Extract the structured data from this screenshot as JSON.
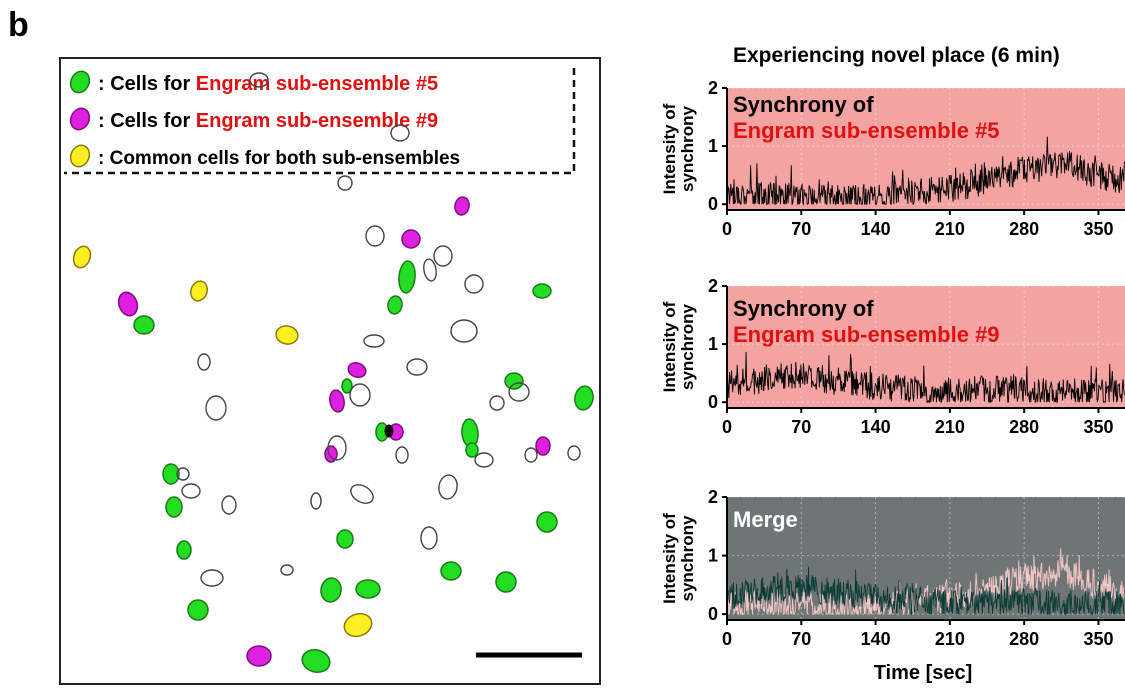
{
  "panel_letter": "b",
  "figure_title": "Experiencing novel place (6 min)",
  "legend": {
    "items": [
      {
        "prefix": ": Cells for ",
        "highlight": "Engram sub-ensemble #5",
        "fill": "#22dd22",
        "stroke": "#1a7a1a"
      },
      {
        "prefix": ": Cells for ",
        "highlight": "Engram sub-ensemble #9",
        "fill": "#e020e0",
        "stroke": "#7a107a"
      },
      {
        "prefix": ": Common cells for both sub-ensembles",
        "highlight": "",
        "fill": "#ffef20",
        "stroke": "#8a7a10"
      }
    ]
  },
  "colors": {
    "highlight_text": "#e01010",
    "panel_red_bg": "#f4a3a3",
    "panel_merge_bg": "#6f7575",
    "trace_black": "#000000",
    "merge_dark_trace": "#0a3b36",
    "merge_pink_trace": "#f3c6c6",
    "scale_bar": "#000000"
  },
  "chart_data": [
    {
      "type": "line",
      "panel_text": [
        "Synchrony of",
        "Engram sub-ensemble #5"
      ],
      "panel_text_colors": [
        "#000000",
        "#e01010"
      ],
      "ylabel": "Intensity of synchrony",
      "xlabel": "",
      "xlim": [
        0,
        375
      ],
      "ylim": [
        -0.1,
        2
      ],
      "xticks": [
        "0",
        "70",
        "140",
        "210",
        "280",
        "350"
      ],
      "yticks": [
        "0",
        "1",
        "2"
      ],
      "background": "#f4a3a3",
      "series": [
        {
          "color": "#000000",
          "profile_x": [
            0,
            60,
            120,
            160,
            200,
            240,
            270,
            300,
            320,
            340,
            360,
            375
          ],
          "profile_y": [
            0.18,
            0.12,
            0.08,
            0.15,
            0.25,
            0.38,
            0.55,
            0.65,
            0.7,
            0.55,
            0.45,
            0.35
          ]
        }
      ]
    },
    {
      "type": "line",
      "panel_text": [
        "Synchrony of",
        "Engram sub-ensemble #9"
      ],
      "panel_text_colors": [
        "#000000",
        "#e01010"
      ],
      "ylabel": "Intensity of synchrony",
      "xlabel": "",
      "xlim": [
        0,
        375
      ],
      "ylim": [
        -0.1,
        2
      ],
      "xticks": [
        "0",
        "70",
        "140",
        "210",
        "280",
        "350"
      ],
      "yticks": [
        "0",
        "1",
        "2"
      ],
      "background": "#f4a3a3",
      "series": [
        {
          "color": "#000000",
          "profile_x": [
            0,
            40,
            70,
            110,
            150,
            200,
            250,
            300,
            340,
            375
          ],
          "profile_y": [
            0.3,
            0.42,
            0.45,
            0.35,
            0.25,
            0.2,
            0.22,
            0.18,
            0.15,
            0.15
          ]
        }
      ]
    },
    {
      "type": "line",
      "panel_text": [
        "Merge"
      ],
      "panel_text_colors": [
        "#ffffff"
      ],
      "ylabel": "Intensity of synchrony",
      "xlabel": "Time [sec]",
      "xlim": [
        0,
        375
      ],
      "ylim": [
        -0.1,
        2
      ],
      "xticks": [
        "0",
        "70",
        "140",
        "210",
        "280",
        "350"
      ],
      "yticks": [
        "0",
        "1",
        "2"
      ],
      "background": "#6f7575",
      "series": [
        {
          "color": "#f3c6c6",
          "profile_x": [
            0,
            60,
            120,
            160,
            200,
            240,
            270,
            300,
            320,
            340,
            360,
            375
          ],
          "profile_y": [
            0.18,
            0.12,
            0.08,
            0.15,
            0.25,
            0.38,
            0.55,
            0.65,
            0.7,
            0.55,
            0.45,
            0.35
          ]
        },
        {
          "color": "#0a3b36",
          "profile_x": [
            0,
            40,
            70,
            110,
            150,
            200,
            250,
            300,
            340,
            375
          ],
          "profile_y": [
            0.3,
            0.42,
            0.45,
            0.35,
            0.25,
            0.2,
            0.22,
            0.18,
            0.15,
            0.15
          ]
        }
      ]
    }
  ],
  "cell_map": {
    "cells": [
      {
        "type": "yellow",
        "x": 82,
        "y": 257,
        "rx": 8,
        "ry": 11,
        "rot": 20
      },
      {
        "type": "yellow",
        "x": 199,
        "y": 291,
        "rx": 8,
        "ry": 10,
        "rot": 20
      },
      {
        "type": "yellow",
        "x": 287,
        "y": 335,
        "rx": 11,
        "ry": 9,
        "rot": 10
      },
      {
        "type": "yellow",
        "x": 358,
        "y": 625,
        "rx": 14,
        "ry": 11,
        "rot": -20
      },
      {
        "type": "magenta",
        "x": 462,
        "y": 206,
        "rx": 7,
        "ry": 9,
        "rot": 10
      },
      {
        "type": "magenta",
        "x": 411,
        "y": 239,
        "rx": 9,
        "ry": 9,
        "rot": 0
      },
      {
        "type": "magenta",
        "x": 128,
        "y": 304,
        "rx": 9,
        "ry": 12,
        "rot": -20
      },
      {
        "type": "magenta",
        "x": 357,
        "y": 370,
        "rx": 9,
        "ry": 7,
        "rot": 20
      },
      {
        "type": "magenta",
        "x": 337,
        "y": 401,
        "rx": 7,
        "ry": 11,
        "rot": -10
      },
      {
        "type": "magenta",
        "x": 396,
        "y": 432,
        "rx": 7,
        "ry": 8,
        "rot": 0
      },
      {
        "type": "magenta",
        "x": 331,
        "y": 454,
        "rx": 6,
        "ry": 8,
        "rot": 0
      },
      {
        "type": "magenta",
        "x": 543,
        "y": 446,
        "rx": 7,
        "ry": 9,
        "rot": 0
      },
      {
        "type": "magenta",
        "x": 259,
        "y": 656,
        "rx": 12,
        "ry": 10,
        "rot": 0
      },
      {
        "type": "green",
        "x": 407,
        "y": 277,
        "rx": 8,
        "ry": 16,
        "rot": 5
      },
      {
        "type": "green",
        "x": 395,
        "y": 305,
        "rx": 7,
        "ry": 9,
        "rot": 10
      },
      {
        "type": "green",
        "x": 542,
        "y": 291,
        "rx": 9,
        "ry": 7,
        "rot": 0
      },
      {
        "type": "green",
        "x": 144,
        "y": 325,
        "rx": 10,
        "ry": 9,
        "rot": 0
      },
      {
        "type": "green",
        "x": 347,
        "y": 386,
        "rx": 5,
        "ry": 7,
        "rot": 0
      },
      {
        "type": "green",
        "x": 514,
        "y": 381,
        "rx": 9,
        "ry": 8,
        "rot": 0
      },
      {
        "type": "green",
        "x": 584,
        "y": 398,
        "rx": 9,
        "ry": 12,
        "rot": 10
      },
      {
        "type": "green",
        "x": 470,
        "y": 433,
        "rx": 8,
        "ry": 14,
        "rot": -5
      },
      {
        "type": "green",
        "x": 472,
        "y": 450,
        "rx": 6,
        "ry": 7,
        "rot": 0
      },
      {
        "type": "green",
        "x": 382,
        "y": 432,
        "rx": 6,
        "ry": 9,
        "rot": 0
      },
      {
        "type": "green",
        "x": 171,
        "y": 474,
        "rx": 8,
        "ry": 10,
        "rot": 0
      },
      {
        "type": "green",
        "x": 174,
        "y": 507,
        "rx": 8,
        "ry": 10,
        "rot": 0
      },
      {
        "type": "green",
        "x": 547,
        "y": 522,
        "rx": 10,
        "ry": 10,
        "rot": 0
      },
      {
        "type": "green",
        "x": 345,
        "y": 539,
        "rx": 8,
        "ry": 9,
        "rot": 0
      },
      {
        "type": "green",
        "x": 184,
        "y": 550,
        "rx": 7,
        "ry": 9,
        "rot": 0
      },
      {
        "type": "green",
        "x": 451,
        "y": 571,
        "rx": 10,
        "ry": 9,
        "rot": 0
      },
      {
        "type": "green",
        "x": 506,
        "y": 582,
        "rx": 10,
        "ry": 10,
        "rot": 0
      },
      {
        "type": "green",
        "x": 331,
        "y": 590,
        "rx": 10,
        "ry": 12,
        "rot": 10
      },
      {
        "type": "green",
        "x": 368,
        "y": 589,
        "rx": 12,
        "ry": 9,
        "rot": 0
      },
      {
        "type": "green",
        "x": 198,
        "y": 610,
        "rx": 10,
        "ry": 10,
        "rot": 0
      },
      {
        "type": "green",
        "x": 316,
        "y": 661,
        "rx": 14,
        "ry": 11,
        "rot": 15
      },
      {
        "type": "black",
        "x": 389,
        "y": 431,
        "rx": 4,
        "ry": 6,
        "rot": 0
      },
      {
        "type": "outline",
        "x": 259,
        "y": 80,
        "rx": 9,
        "ry": 7,
        "rot": 0
      },
      {
        "type": "outline",
        "x": 400,
        "y": 133,
        "rx": 9,
        "ry": 8,
        "rot": 0
      },
      {
        "type": "outline",
        "x": 345,
        "y": 183,
        "rx": 7,
        "ry": 7,
        "rot": 0
      },
      {
        "type": "outline",
        "x": 375,
        "y": 236,
        "rx": 9,
        "ry": 10,
        "rot": 0
      },
      {
        "type": "outline",
        "x": 443,
        "y": 256,
        "rx": 9,
        "ry": 10,
        "rot": 0
      },
      {
        "type": "outline",
        "x": 430,
        "y": 270,
        "rx": 6,
        "ry": 11,
        "rot": -10
      },
      {
        "type": "outline",
        "x": 474,
        "y": 284,
        "rx": 9,
        "ry": 9,
        "rot": 0
      },
      {
        "type": "outline",
        "x": 464,
        "y": 331,
        "rx": 13,
        "ry": 11,
        "rot": 0
      },
      {
        "type": "outline",
        "x": 374,
        "y": 341,
        "rx": 10,
        "ry": 6,
        "rot": 0
      },
      {
        "type": "outline",
        "x": 204,
        "y": 362,
        "rx": 6,
        "ry": 8,
        "rot": 0
      },
      {
        "type": "outline",
        "x": 417,
        "y": 367,
        "rx": 10,
        "ry": 8,
        "rot": 0
      },
      {
        "type": "outline",
        "x": 360,
        "y": 395,
        "rx": 10,
        "ry": 11,
        "rot": 0
      },
      {
        "type": "outline",
        "x": 216,
        "y": 408,
        "rx": 10,
        "ry": 12,
        "rot": 0
      },
      {
        "type": "outline",
        "x": 497,
        "y": 403,
        "rx": 7,
        "ry": 7,
        "rot": 0
      },
      {
        "type": "outline",
        "x": 519,
        "y": 392,
        "rx": 10,
        "ry": 9,
        "rot": 0
      },
      {
        "type": "outline",
        "x": 337,
        "y": 448,
        "rx": 9,
        "ry": 12,
        "rot": 0
      },
      {
        "type": "outline",
        "x": 402,
        "y": 455,
        "rx": 6,
        "ry": 8,
        "rot": 0
      },
      {
        "type": "outline",
        "x": 484,
        "y": 460,
        "rx": 9,
        "ry": 7,
        "rot": 0
      },
      {
        "type": "outline",
        "x": 531,
        "y": 455,
        "rx": 6,
        "ry": 7,
        "rot": 0
      },
      {
        "type": "outline",
        "x": 574,
        "y": 453,
        "rx": 6,
        "ry": 7,
        "rot": 0
      },
      {
        "type": "outline",
        "x": 183,
        "y": 474,
        "rx": 6,
        "ry": 6,
        "rot": 0
      },
      {
        "type": "outline",
        "x": 191,
        "y": 491,
        "rx": 9,
        "ry": 7,
        "rot": 0
      },
      {
        "type": "outline",
        "x": 362,
        "y": 494,
        "rx": 12,
        "ry": 8,
        "rot": 30
      },
      {
        "type": "outline",
        "x": 448,
        "y": 487,
        "rx": 9,
        "ry": 12,
        "rot": 10
      },
      {
        "type": "outline",
        "x": 229,
        "y": 505,
        "rx": 7,
        "ry": 9,
        "rot": 0
      },
      {
        "type": "outline",
        "x": 316,
        "y": 501,
        "rx": 5,
        "ry": 8,
        "rot": 0
      },
      {
        "type": "outline",
        "x": 429,
        "y": 538,
        "rx": 8,
        "ry": 11,
        "rot": 0
      },
      {
        "type": "outline",
        "x": 212,
        "y": 578,
        "rx": 11,
        "ry": 8,
        "rot": 0
      },
      {
        "type": "outline",
        "x": 287,
        "y": 570,
        "rx": 6,
        "ry": 5,
        "rot": 0
      }
    ]
  }
}
